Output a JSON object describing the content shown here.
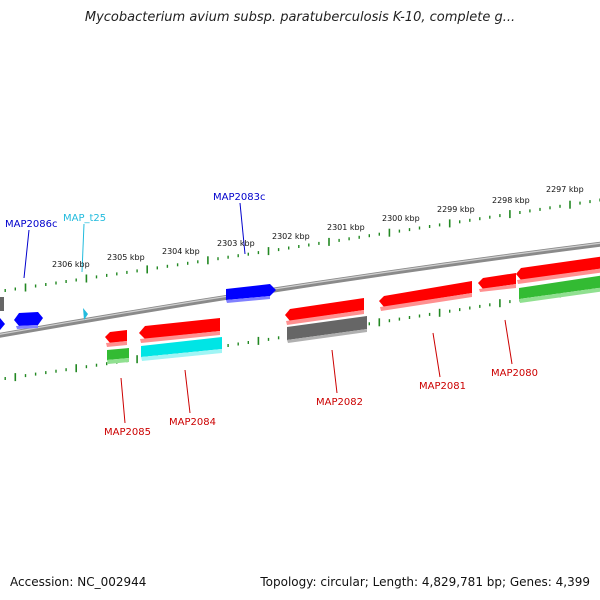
{
  "title": "Mycobacterium avium subsp. paratuberculosis K-10, complete g...",
  "footer": {
    "accession": "Accession: NC_002944",
    "topology": "Topology: circular; Length: 4,829,781 bp; Genes: 4,399"
  },
  "scale_labels": [
    "2297 kbp",
    "2298 kbp",
    "2299 kbp",
    "2300 kbp",
    "2301 kbp",
    "2302 kbp",
    "2303 kbp",
    "2304 kbp",
    "2305 kbp",
    "2306 kbp"
  ],
  "gene_labels": [
    {
      "text": "MAP2086c",
      "color": "#0000cc"
    },
    {
      "text": "MAP_t25",
      "color": "#22bbdd"
    },
    {
      "text": "MAP2083c",
      "color": "#0000cc"
    },
    {
      "text": "MAP2085",
      "color": "#cc0000"
    },
    {
      "text": "MAP2084",
      "color": "#cc0000"
    },
    {
      "text": "MAP2082",
      "color": "#cc0000"
    },
    {
      "text": "MAP2081",
      "color": "#cc0000"
    },
    {
      "text": "MAP2080",
      "color": "#cc0000"
    }
  ],
  "colors": {
    "backbone": "#808080",
    "scale_ticks": "#228822",
    "cds_forward": "#ff0000",
    "cds_reverse": "#0000ff",
    "trna": "#22bbdd",
    "gene": "#666666",
    "rna_track_a": "#33bb33",
    "rna_track_b": "#00e5e5"
  }
}
